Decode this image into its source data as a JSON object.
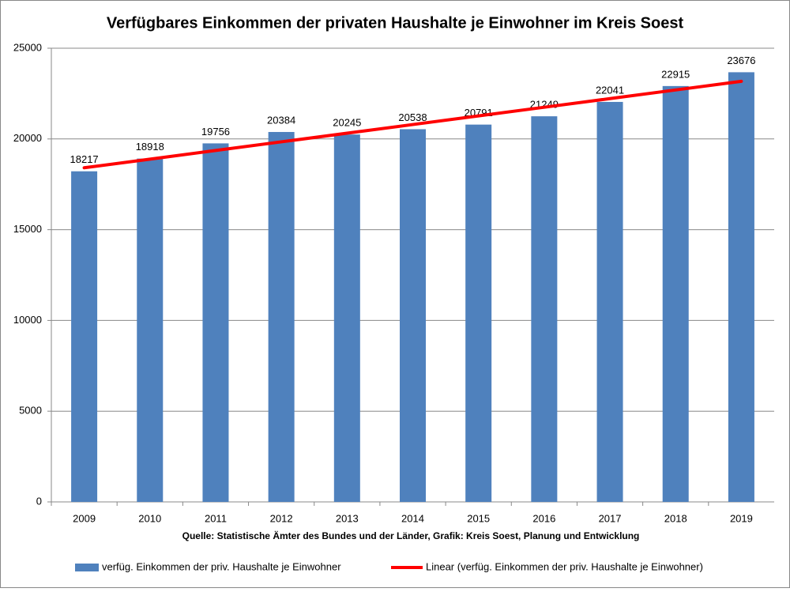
{
  "chart_data": {
    "type": "bar",
    "title": "Verfügbares Einkommen der privaten Haushalte je Einwohner im Kreis Soest",
    "source": "Quelle: Statistische Ämter des Bundes und der Länder, Grafik: Kreis Soest, Planung und Entwicklung",
    "categories": [
      "2009",
      "2010",
      "2011",
      "2012",
      "2013",
      "2014",
      "2015",
      "2016",
      "2017",
      "2018",
      "2019"
    ],
    "series": [
      {
        "name": "verfüg. Einkommen der priv. Haushalte je Einwohner",
        "color": "#4f81bd",
        "values": [
          18217,
          18918,
          19756,
          20384,
          20245,
          20538,
          20791,
          21249,
          22041,
          22915,
          23676
        ]
      },
      {
        "name": "Linear (verfüg. Einkommen der priv. Haushalte je Einwohner)",
        "color": "#ff0000",
        "type": "line",
        "values": [
          18411,
          18888,
          19364,
          19841,
          20317,
          20794,
          21270,
          21747,
          22223,
          22700,
          23176
        ]
      }
    ],
    "ylim": [
      0,
      25000
    ],
    "yticks": [
      0,
      5000,
      10000,
      15000,
      20000,
      25000
    ],
    "grid": true
  }
}
